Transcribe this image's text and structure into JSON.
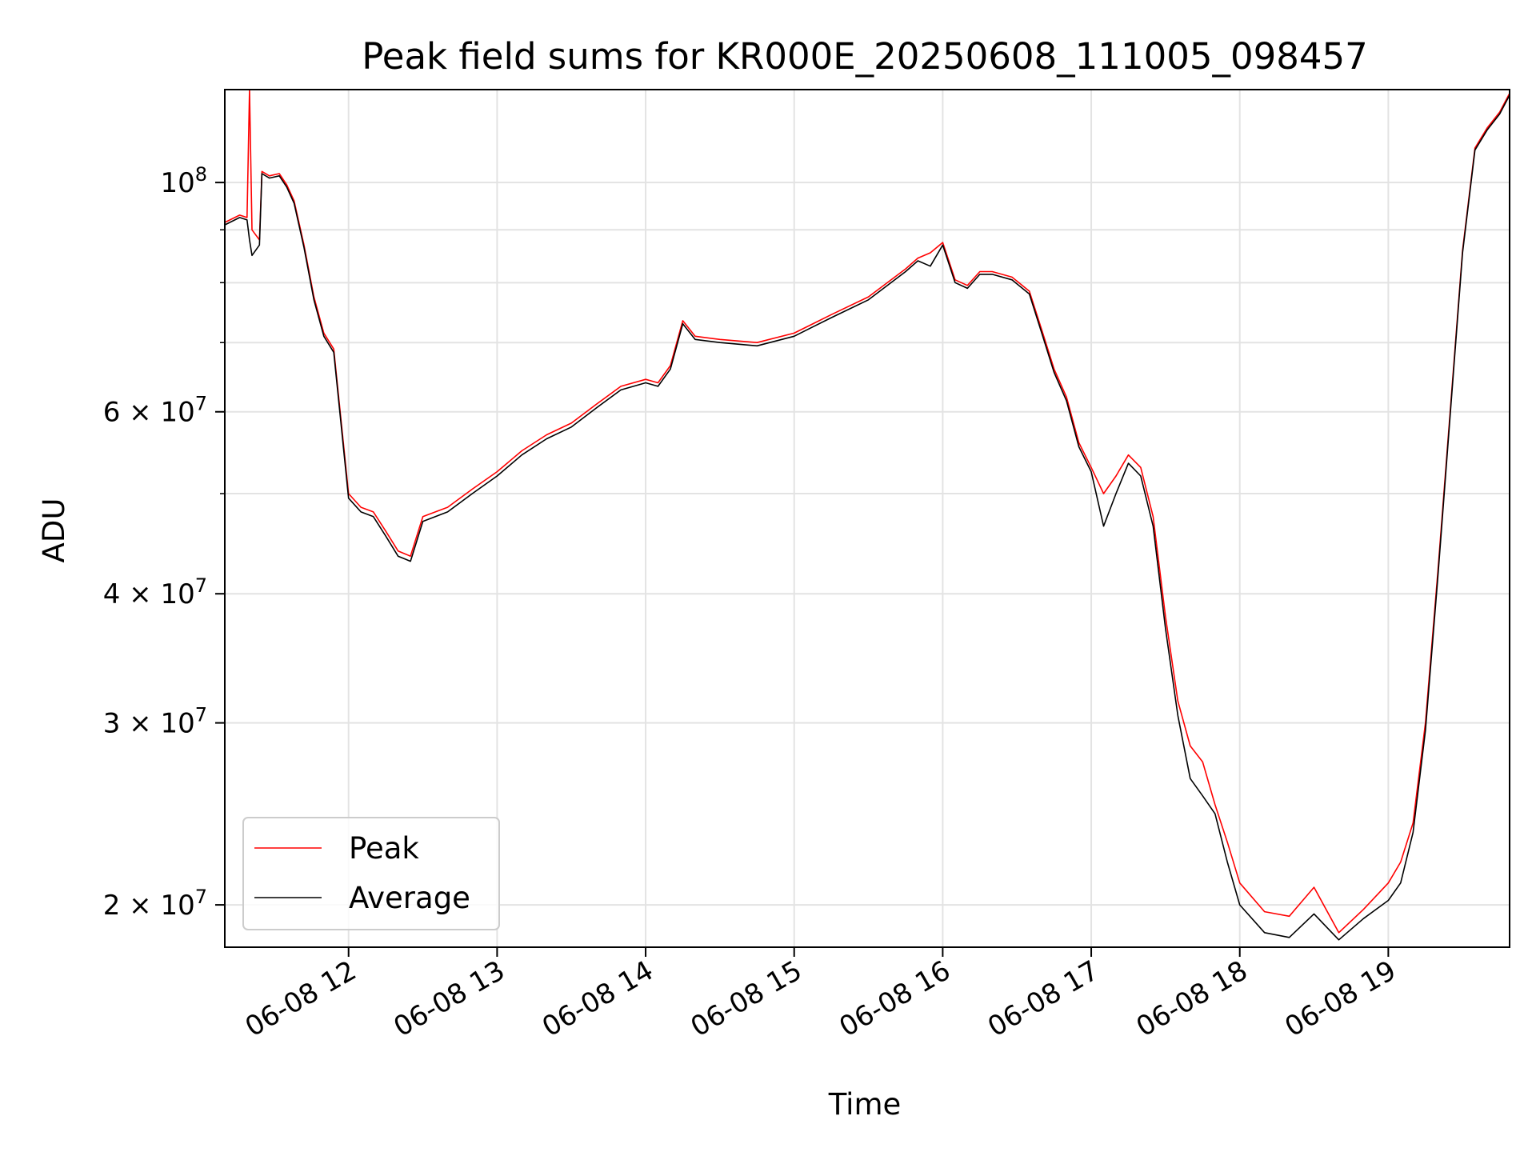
{
  "chart_data": {
    "type": "line",
    "title": "Peak field sums for KR000E_20250608_111005_098457",
    "xlabel": "Time",
    "ylabel": "ADU",
    "y_scale": "log",
    "grid": true,
    "legend_position": "lower-left",
    "xlim": [
      "2025-06-08 11:10",
      "2025-06-08 19:49"
    ],
    "ylim": [
      18200000,
      123000000
    ],
    "x_ticks": [
      {
        "x": "2025-06-08 12:00",
        "label": "06-08 12"
      },
      {
        "x": "2025-06-08 13:00",
        "label": "06-08 13"
      },
      {
        "x": "2025-06-08 14:00",
        "label": "06-08 14"
      },
      {
        "x": "2025-06-08 15:00",
        "label": "06-08 15"
      },
      {
        "x": "2025-06-08 16:00",
        "label": "06-08 16"
      },
      {
        "x": "2025-06-08 17:00",
        "label": "06-08 17"
      },
      {
        "x": "2025-06-08 18:00",
        "label": "06-08 18"
      },
      {
        "x": "2025-06-08 19:00",
        "label": "06-08 19"
      }
    ],
    "y_ticks": [
      {
        "value": 100000000,
        "base": "10",
        "exp": "8"
      },
      {
        "value": 60000000,
        "base": "6 × 10",
        "exp": "7"
      },
      {
        "value": 40000000,
        "base": "4 × 10",
        "exp": "7"
      },
      {
        "value": 30000000,
        "base": "3 × 10",
        "exp": "7"
      },
      {
        "value": 20000000,
        "base": "2 × 10",
        "exp": "7"
      }
    ],
    "y_minor_grid": [
      90000000,
      80000000,
      70000000,
      50000000
    ],
    "series": [
      {
        "name": "Peak",
        "color": "#ff0000",
        "x": [
          "2025-06-08 11:10",
          "2025-06-08 11:16",
          "2025-06-08 11:19",
          "2025-06-08 11:20",
          "2025-06-08 11:21",
          "2025-06-08 11:24",
          "2025-06-08 11:25",
          "2025-06-08 11:28",
          "2025-06-08 11:32",
          "2025-06-08 11:35",
          "2025-06-08 11:38",
          "2025-06-08 11:42",
          "2025-06-08 11:46",
          "2025-06-08 11:50",
          "2025-06-08 11:54",
          "2025-06-08 12:00",
          "2025-06-08 12:05",
          "2025-06-08 12:10",
          "2025-06-08 12:15",
          "2025-06-08 12:20",
          "2025-06-08 12:25",
          "2025-06-08 12:30",
          "2025-06-08 12:40",
          "2025-06-08 12:50",
          "2025-06-08 13:00",
          "2025-06-08 13:10",
          "2025-06-08 13:20",
          "2025-06-08 13:30",
          "2025-06-08 13:40",
          "2025-06-08 13:50",
          "2025-06-08 14:00",
          "2025-06-08 14:05",
          "2025-06-08 14:10",
          "2025-06-08 14:15",
          "2025-06-08 14:20",
          "2025-06-08 14:30",
          "2025-06-08 14:45",
          "2025-06-08 15:00",
          "2025-06-08 15:15",
          "2025-06-08 15:30",
          "2025-06-08 15:45",
          "2025-06-08 15:50",
          "2025-06-08 15:55",
          "2025-06-08 16:00",
          "2025-06-08 16:05",
          "2025-06-08 16:10",
          "2025-06-08 16:15",
          "2025-06-08 16:20",
          "2025-06-08 16:28",
          "2025-06-08 16:35",
          "2025-06-08 16:40",
          "2025-06-08 16:45",
          "2025-06-08 16:50",
          "2025-06-08 16:55",
          "2025-06-08 17:00",
          "2025-06-08 17:05",
          "2025-06-08 17:10",
          "2025-06-08 17:15",
          "2025-06-08 17:20",
          "2025-06-08 17:25",
          "2025-06-08 17:30",
          "2025-06-08 17:35",
          "2025-06-08 17:40",
          "2025-06-08 17:45",
          "2025-06-08 17:50",
          "2025-06-08 17:55",
          "2025-06-08 18:00",
          "2025-06-08 18:10",
          "2025-06-08 18:20",
          "2025-06-08 18:30",
          "2025-06-08 18:40",
          "2025-06-08 18:50",
          "2025-06-08 19:00",
          "2025-06-08 19:05",
          "2025-06-08 19:10",
          "2025-06-08 19:15",
          "2025-06-08 19:20",
          "2025-06-08 19:25",
          "2025-06-08 19:30",
          "2025-06-08 19:35",
          "2025-06-08 19:40",
          "2025-06-08 19:45",
          "2025-06-08 19:49"
        ],
        "values": [
          91500000,
          93000000,
          92500000,
          123000000,
          90000000,
          88000000,
          102500000,
          101500000,
          102000000,
          99500000,
          96000000,
          87000000,
          77500000,
          71500000,
          69000000,
          50000000,
          48500000,
          48000000,
          46000000,
          44000000,
          43500000,
          47500000,
          48500000,
          50500000,
          52500000,
          55000000,
          57000000,
          58500000,
          61000000,
          63500000,
          64500000,
          64000000,
          66500000,
          73500000,
          71000000,
          70500000,
          70000000,
          71500000,
          74500000,
          77500000,
          82500000,
          84500000,
          85500000,
          87500000,
          80500000,
          79500000,
          82000000,
          82000000,
          81000000,
          78500000,
          72000000,
          66000000,
          62000000,
          56000000,
          53000000,
          50000000,
          52000000,
          54500000,
          53000000,
          47500000,
          38000000,
          31500000,
          28500000,
          27500000,
          25000000,
          23000000,
          21000000,
          19700000,
          19500000,
          20800000,
          18800000,
          19800000,
          21000000,
          22000000,
          24000000,
          30000000,
          42000000,
          60000000,
          86000000,
          108000000,
          113000000,
          117000000,
          122000000
        ]
      },
      {
        "name": "Average",
        "color": "#000000",
        "x": [
          "2025-06-08 11:10",
          "2025-06-08 11:16",
          "2025-06-08 11:19",
          "2025-06-08 11:20",
          "2025-06-08 11:21",
          "2025-06-08 11:24",
          "2025-06-08 11:25",
          "2025-06-08 11:28",
          "2025-06-08 11:32",
          "2025-06-08 11:35",
          "2025-06-08 11:38",
          "2025-06-08 11:42",
          "2025-06-08 11:46",
          "2025-06-08 11:50",
          "2025-06-08 11:54",
          "2025-06-08 12:00",
          "2025-06-08 12:05",
          "2025-06-08 12:10",
          "2025-06-08 12:15",
          "2025-06-08 12:20",
          "2025-06-08 12:25",
          "2025-06-08 12:30",
          "2025-06-08 12:40",
          "2025-06-08 12:50",
          "2025-06-08 13:00",
          "2025-06-08 13:10",
          "2025-06-08 13:20",
          "2025-06-08 13:30",
          "2025-06-08 13:40",
          "2025-06-08 13:50",
          "2025-06-08 14:00",
          "2025-06-08 14:05",
          "2025-06-08 14:10",
          "2025-06-08 14:15",
          "2025-06-08 14:20",
          "2025-06-08 14:30",
          "2025-06-08 14:45",
          "2025-06-08 15:00",
          "2025-06-08 15:15",
          "2025-06-08 15:30",
          "2025-06-08 15:45",
          "2025-06-08 15:50",
          "2025-06-08 15:55",
          "2025-06-08 16:00",
          "2025-06-08 16:05",
          "2025-06-08 16:10",
          "2025-06-08 16:15",
          "2025-06-08 16:20",
          "2025-06-08 16:28",
          "2025-06-08 16:35",
          "2025-06-08 16:40",
          "2025-06-08 16:45",
          "2025-06-08 16:50",
          "2025-06-08 16:55",
          "2025-06-08 17:00",
          "2025-06-08 17:05",
          "2025-06-08 17:10",
          "2025-06-08 17:15",
          "2025-06-08 17:20",
          "2025-06-08 17:25",
          "2025-06-08 17:30",
          "2025-06-08 17:35",
          "2025-06-08 17:40",
          "2025-06-08 17:45",
          "2025-06-08 17:50",
          "2025-06-08 17:55",
          "2025-06-08 18:00",
          "2025-06-08 18:10",
          "2025-06-08 18:20",
          "2025-06-08 18:30",
          "2025-06-08 18:40",
          "2025-06-08 18:50",
          "2025-06-08 19:00",
          "2025-06-08 19:05",
          "2025-06-08 19:10",
          "2025-06-08 19:15",
          "2025-06-08 19:20",
          "2025-06-08 19:25",
          "2025-06-08 19:30",
          "2025-06-08 19:35",
          "2025-06-08 19:40",
          "2025-06-08 19:45",
          "2025-06-08 19:49"
        ],
        "values": [
          91000000,
          92500000,
          92000000,
          88000000,
          85000000,
          87000000,
          102000000,
          101000000,
          101500000,
          99000000,
          95500000,
          86500000,
          77000000,
          71000000,
          68500000,
          49500000,
          48000000,
          47500000,
          45500000,
          43500000,
          43000000,
          47000000,
          48000000,
          50000000,
          52000000,
          54500000,
          56500000,
          58000000,
          60500000,
          63000000,
          64000000,
          63500000,
          66000000,
          73000000,
          70500000,
          70000000,
          69500000,
          71000000,
          74000000,
          77000000,
          82000000,
          84000000,
          83000000,
          87000000,
          80000000,
          79000000,
          81500000,
          81500000,
          80500000,
          78000000,
          71500000,
          65500000,
          61500000,
          55500000,
          52500000,
          46500000,
          50000000,
          53500000,
          52000000,
          46500000,
          37000000,
          30500000,
          26500000,
          25500000,
          24500000,
          22000000,
          20000000,
          18800000,
          18600000,
          19600000,
          18500000,
          19400000,
          20200000,
          21000000,
          23500000,
          29500000,
          41500000,
          59500000,
          85500000,
          107500000,
          112500000,
          116500000,
          121500000
        ]
      }
    ]
  }
}
